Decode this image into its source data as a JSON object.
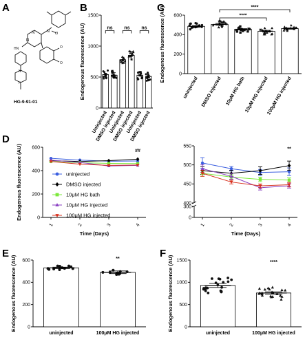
{
  "panels": {
    "A": {
      "label": "A",
      "compound_caption": "HG-9-91-01"
    },
    "B": {
      "label": "B"
    },
    "C": {
      "label": "C"
    },
    "D": {
      "label": "D"
    },
    "E": {
      "label": "E"
    },
    "F": {
      "label": "F"
    }
  },
  "colors": {
    "uninjected": "#3b5fe0",
    "dmso": "#000000",
    "bath": "#7ce83c",
    "hg_injected": "#8a3fc2",
    "hg100": "#d8301e"
  },
  "chart_data": [
    {
      "id": "B",
      "type": "bar",
      "ylabel": "Endogenous fluorescence (AU)",
      "ylim": [
        0,
        1500
      ],
      "yticks": [
        0,
        500,
        1000,
        1500
      ],
      "categories": [
        "Uninjected",
        "DMSO injected",
        "Uninjected",
        "DMSO injected",
        "Uninjected",
        "DMSO injected"
      ],
      "values": [
        540,
        530,
        780,
        850,
        530,
        510
      ],
      "errors": [
        20,
        40,
        40,
        60,
        15,
        15
      ],
      "markers": [
        "circle",
        "square",
        "triangle",
        "triangle",
        "circle",
        "circle"
      ],
      "significance": [
        {
          "pair": [
            0,
            1
          ],
          "label": "ns"
        },
        {
          "pair": [
            2,
            3
          ],
          "label": "ns"
        },
        {
          "pair": [
            4,
            5
          ],
          "label": "ns"
        }
      ]
    },
    {
      "id": "C",
      "type": "bar",
      "ylabel": "Endogenous fluorescence (AU)",
      "ylim": [
        0,
        600
      ],
      "yticks": [
        0,
        200,
        400,
        600
      ],
      "categories": [
        "uninjected",
        "DMSO injected",
        "10μM HG bath",
        "10μM HG injected",
        "100μM HG injected"
      ],
      "values": [
        485,
        505,
        455,
        435,
        462
      ],
      "errors": [
        8,
        10,
        6,
        9,
        6
      ],
      "markers": [
        "circle",
        "star",
        "square",
        "triangle",
        "triangle"
      ],
      "significance": [
        {
          "pair": [
            1,
            4
          ],
          "label": "****"
        },
        {
          "pair": [
            1,
            3
          ],
          "label": "****"
        }
      ]
    },
    {
      "id": "D1",
      "type": "line",
      "xlabel": "Time (Days)",
      "ylabel": "Endogenous fluorescence (AU)",
      "x": [
        1,
        2,
        3,
        4
      ],
      "ylim": [
        0,
        600
      ],
      "yticks": [
        0,
        200,
        400,
        600
      ],
      "legend_position": "bottom-left",
      "annotation": "##",
      "series": [
        {
          "name": "uninjected",
          "values": [
            505,
            490,
            480,
            482
          ],
          "color": "#3b5fe0",
          "marker": "circle"
        },
        {
          "name": "DMSO injected",
          "values": [
            485,
            478,
            485,
            498
          ],
          "color": "#000000",
          "marker": "diamond"
        },
        {
          "name": "10μM HG bath",
          "values": [
            478,
            468,
            462,
            460
          ],
          "color": "#7ce83c",
          "marker": "square"
        },
        {
          "name": "10μM HG injected",
          "values": [
            490,
            470,
            440,
            445
          ],
          "color": "#8a3fc2",
          "marker": "triangle"
        },
        {
          "name": "100μM HG injected",
          "values": [
            478,
            455,
            445,
            448
          ],
          "color": "#d8301e",
          "marker": "triangle-down"
        }
      ]
    },
    {
      "id": "D2",
      "type": "line",
      "xlabel": "Time (Days)",
      "x": [
        1,
        2,
        3,
        4
      ],
      "ylim_lower": [
        0,
        300
      ],
      "ylim_upper": [
        400,
        550
      ],
      "yticks": [
        0,
        300,
        400,
        450,
        500,
        550
      ],
      "annotation": "**",
      "series": [
        {
          "name": "uninjected",
          "values": [
            505,
            490,
            480,
            482
          ],
          "errors": [
            14,
            6,
            8,
            10
          ],
          "color": "#3b5fe0"
        },
        {
          "name": "DMSO injected",
          "values": [
            485,
            478,
            485,
            498
          ],
          "errors": [
            10,
            8,
            10,
            12
          ],
          "color": "#000000"
        },
        {
          "name": "10μM HG bath",
          "values": [
            478,
            468,
            462,
            460
          ],
          "errors": [
            8,
            6,
            6,
            6
          ],
          "color": "#7ce83c"
        },
        {
          "name": "10μM HG injected",
          "values": [
            490,
            470,
            440,
            445
          ],
          "errors": [
            10,
            8,
            6,
            6
          ],
          "color": "#8a3fc2"
        },
        {
          "name": "100μM HG injected",
          "values": [
            478,
            455,
            445,
            448
          ],
          "errors": [
            8,
            5,
            5,
            6
          ],
          "color": "#d8301e"
        }
      ]
    },
    {
      "id": "E",
      "type": "bar",
      "ylabel": "Endogenous fluorescence (AU)",
      "ylim": [
        0,
        600
      ],
      "yticks": [
        0,
        200,
        400,
        600
      ],
      "categories": [
        "uninjected",
        "100μM HG injected"
      ],
      "values": [
        530,
        490
      ],
      "errors": [
        6,
        12
      ],
      "markers": [
        "circle",
        "circle"
      ],
      "annotation": "**"
    },
    {
      "id": "F",
      "type": "bar",
      "ylabel": "Endogenous fluorescence (AU)",
      "ylim": [
        0,
        1500
      ],
      "yticks": [
        0,
        500,
        1000,
        1500
      ],
      "categories": [
        "uninjected",
        "100μM HG injected"
      ],
      "values": [
        930,
        760
      ],
      "errors": [
        45,
        25
      ],
      "markers": [
        "circle",
        "triangle"
      ],
      "annotation": "****"
    }
  ]
}
